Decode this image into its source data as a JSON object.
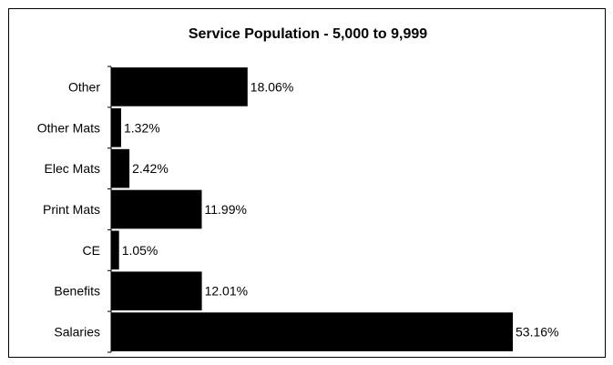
{
  "chart_data": {
    "type": "bar",
    "orientation": "horizontal",
    "title": "Service Population - 5,000 to 9,999",
    "xlabel": "",
    "ylabel": "",
    "categories": [
      "Other",
      "Other Mats",
      "Elec Mats",
      "Print Mats",
      "CE",
      "Benefits",
      "Salaries"
    ],
    "values": [
      18.06,
      1.32,
      2.42,
      11.99,
      1.05,
      12.01,
      53.16
    ],
    "data_labels": [
      "18.06%",
      "1.32%",
      "2.42%",
      "11.99%",
      "1.05%",
      "12.01%",
      "53.16%"
    ],
    "xlim": [
      0,
      54
    ],
    "bar_color": "#000000",
    "grid": false,
    "legend": "none"
  }
}
